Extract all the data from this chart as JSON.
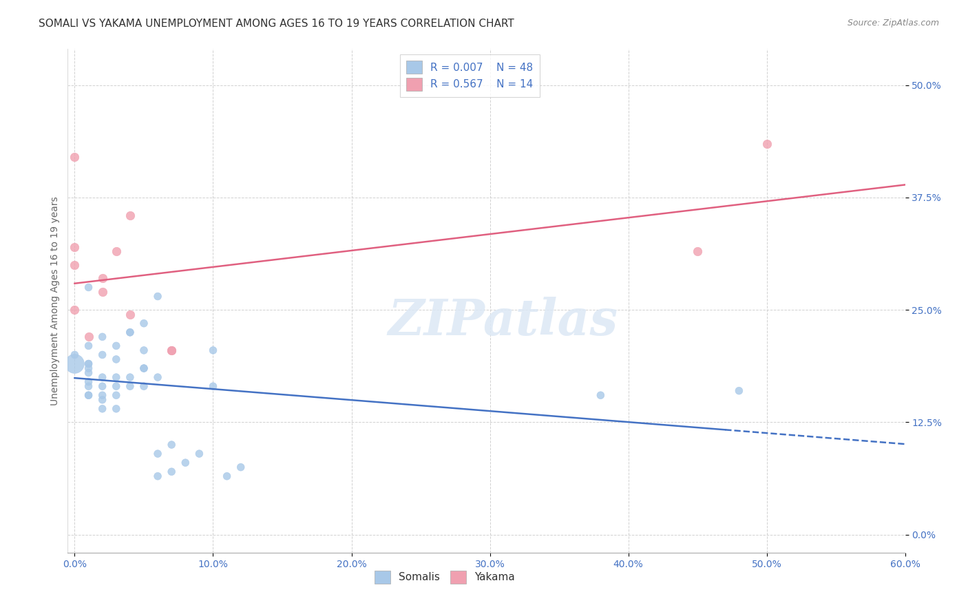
{
  "title": "SOMALI VS YAKAMA UNEMPLOYMENT AMONG AGES 16 TO 19 YEARS CORRELATION CHART",
  "source": "Source: ZipAtlas.com",
  "xlabel_ticks": [
    "0.0%",
    "10.0%",
    "20.0%",
    "30.0%",
    "40.0%",
    "50.0%",
    "60.0%"
  ],
  "xlabel_vals": [
    0.0,
    0.1,
    0.2,
    0.3,
    0.4,
    0.5,
    0.6
  ],
  "ylabel_ticks": [
    "0.0%",
    "12.5%",
    "25.0%",
    "37.5%",
    "50.0%"
  ],
  "ylabel_vals": [
    0.0,
    0.125,
    0.25,
    0.375,
    0.5
  ],
  "ylabel_label": "Unemployment Among Ages 16 to 19 years",
  "xlim": [
    -0.005,
    0.6
  ],
  "ylim": [
    -0.02,
    0.54
  ],
  "somali_R": 0.007,
  "somali_N": 48,
  "yakama_R": 0.567,
  "yakama_N": 14,
  "somali_color": "#a8c8e8",
  "yakama_color": "#f0a0b0",
  "somali_line_color": "#4472c4",
  "yakama_line_color": "#e06080",
  "watermark": "ZIPatlas",
  "somali_x": [
    0.0,
    0.0,
    0.01,
    0.01,
    0.01,
    0.01,
    0.01,
    0.01,
    0.01,
    0.01,
    0.02,
    0.02,
    0.02,
    0.02,
    0.02,
    0.02,
    0.03,
    0.03,
    0.03,
    0.03,
    0.03,
    0.04,
    0.04,
    0.04,
    0.05,
    0.05,
    0.05,
    0.05,
    0.05,
    0.06,
    0.06,
    0.06,
    0.06,
    0.07,
    0.07,
    0.08,
    0.09,
    0.1,
    0.1,
    0.11,
    0.12,
    0.38,
    0.48,
    0.01,
    0.01,
    0.02,
    0.03,
    0.04
  ],
  "somali_y": [
    0.19,
    0.2,
    0.165,
    0.17,
    0.18,
    0.185,
    0.19,
    0.19,
    0.155,
    0.155,
    0.14,
    0.15,
    0.155,
    0.165,
    0.175,
    0.2,
    0.14,
    0.155,
    0.165,
    0.175,
    0.21,
    0.165,
    0.175,
    0.225,
    0.165,
    0.185,
    0.185,
    0.205,
    0.235,
    0.065,
    0.09,
    0.175,
    0.265,
    0.07,
    0.1,
    0.08,
    0.09,
    0.165,
    0.205,
    0.065,
    0.075,
    0.155,
    0.16,
    0.275,
    0.21,
    0.22,
    0.195,
    0.225
  ],
  "somali_sizes": [
    400,
    60,
    60,
    60,
    60,
    60,
    60,
    60,
    60,
    60,
    60,
    60,
    60,
    60,
    60,
    60,
    60,
    60,
    60,
    60,
    60,
    60,
    60,
    60,
    60,
    60,
    60,
    60,
    60,
    60,
    60,
    60,
    60,
    60,
    60,
    60,
    60,
    60,
    60,
    60,
    60,
    60,
    60,
    60,
    60,
    60,
    60,
    60
  ],
  "yakama_x": [
    0.0,
    0.0,
    0.0,
    0.0,
    0.01,
    0.02,
    0.02,
    0.03,
    0.04,
    0.04,
    0.07,
    0.07,
    0.45,
    0.5
  ],
  "yakama_y": [
    0.25,
    0.3,
    0.32,
    0.42,
    0.22,
    0.27,
    0.285,
    0.315,
    0.245,
    0.355,
    0.205,
    0.205,
    0.315,
    0.435
  ],
  "grid_color": "#cccccc",
  "background_color": "#ffffff",
  "title_fontsize": 11,
  "axis_label_fontsize": 10,
  "tick_fontsize": 10,
  "tick_color": "#4472c4",
  "legend_fontsize": 11,
  "somali_line_start": 0.0,
  "somali_line_solid_end": 0.47,
  "somali_line_end": 0.6,
  "yakama_line_start": 0.0,
  "yakama_line_end": 0.6
}
